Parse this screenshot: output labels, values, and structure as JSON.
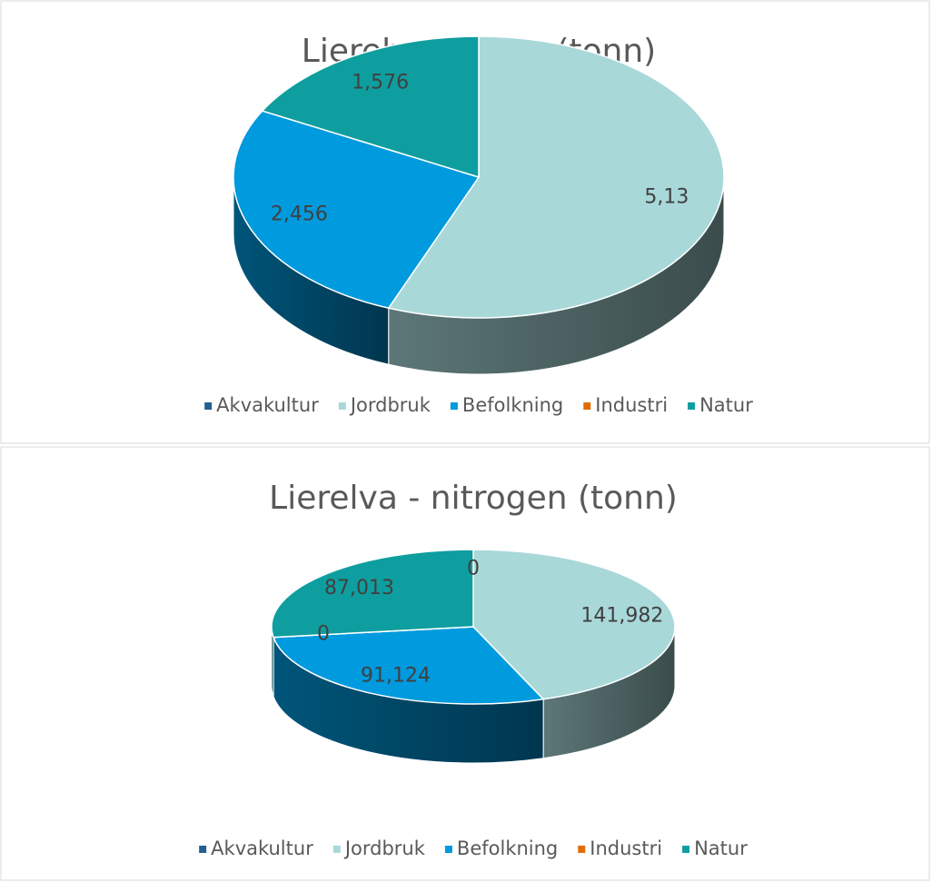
{
  "chart_data": [
    {
      "type": "pie",
      "title": "Lierelva -fosfor (tonn)",
      "categories": [
        "Akvakultur",
        "Jordbruk",
        "Befolkning",
        "Industri",
        "Natur"
      ],
      "values": [
        0,
        5.13,
        2.456,
        0,
        1.576
      ],
      "value_labels": [
        null,
        "5,13",
        "2,456",
        null,
        "1,576"
      ],
      "colors": [
        "#255e91",
        "#a9d8d9",
        "#009ade",
        "#e36c09",
        "#0f9e9f"
      ],
      "legend": "bottom"
    },
    {
      "type": "pie",
      "title": "Lierelva - nitrogen (tonn)",
      "categories": [
        "Akvakultur",
        "Jordbruk",
        "Befolkning",
        "Industri",
        "Natur"
      ],
      "values": [
        0,
        141.982,
        91.124,
        0,
        87.013
      ],
      "value_labels": [
        "0",
        "141,982",
        "91,124",
        "0",
        "87,013"
      ],
      "colors": [
        "#255e91",
        "#a9d8d9",
        "#009ade",
        "#e36c09",
        "#0f9e9f"
      ],
      "legend": "bottom"
    }
  ]
}
